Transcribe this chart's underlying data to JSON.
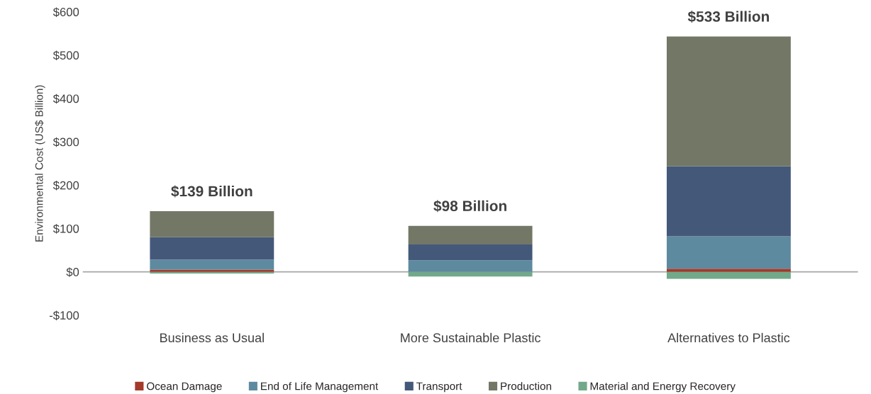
{
  "chart_data": {
    "type": "bar",
    "stacked": true,
    "ylabel": "Environmental Cost (US$ Billion)",
    "categories": [
      "Business as Usual",
      "More Sustainable Plastic",
      "Alternatives to Plastic"
    ],
    "series": [
      {
        "name": "Ocean Damage",
        "color": "#a33a2a",
        "values": [
          5,
          0,
          7
        ]
      },
      {
        "name": "End of Life Management",
        "color": "#5e8aa0",
        "values": [
          23,
          27,
          75
        ]
      },
      {
        "name": "Transport",
        "color": "#44597a",
        "values": [
          52,
          36,
          162
        ]
      },
      {
        "name": "Production",
        "color": "#737766",
        "values": [
          60,
          43,
          299
        ]
      },
      {
        "name": "Material and Energy Recovery",
        "color": "#72a98a",
        "values": [
          -4,
          -11,
          -16
        ]
      }
    ],
    "annotations": [
      {
        "text": "$139 Billion",
        "x": "Business as Usual",
        "y": 140
      },
      {
        "text": "$98 Billion",
        "x": "More Sustainable Plastic",
        "y": 106
      },
      {
        "text": "$533 Billion",
        "x": "Alternatives to Plastic",
        "y": 543
      }
    ],
    "ylim": [
      -100,
      600
    ],
    "yticks": [
      {
        "value": -100,
        "label": "-$100"
      },
      {
        "value": 0,
        "label": "$0"
      },
      {
        "value": 100,
        "label": "$100"
      },
      {
        "value": 200,
        "label": "$200"
      },
      {
        "value": 300,
        "label": "$300"
      },
      {
        "value": 400,
        "label": "$400"
      },
      {
        "value": 500,
        "label": "$500"
      },
      {
        "value": 600,
        "label": "$600"
      }
    ],
    "ref_lines": [
      {
        "axis": "y",
        "value": 0,
        "color": "#a6a6a6"
      }
    ],
    "grid": false,
    "legend": "bottom"
  }
}
